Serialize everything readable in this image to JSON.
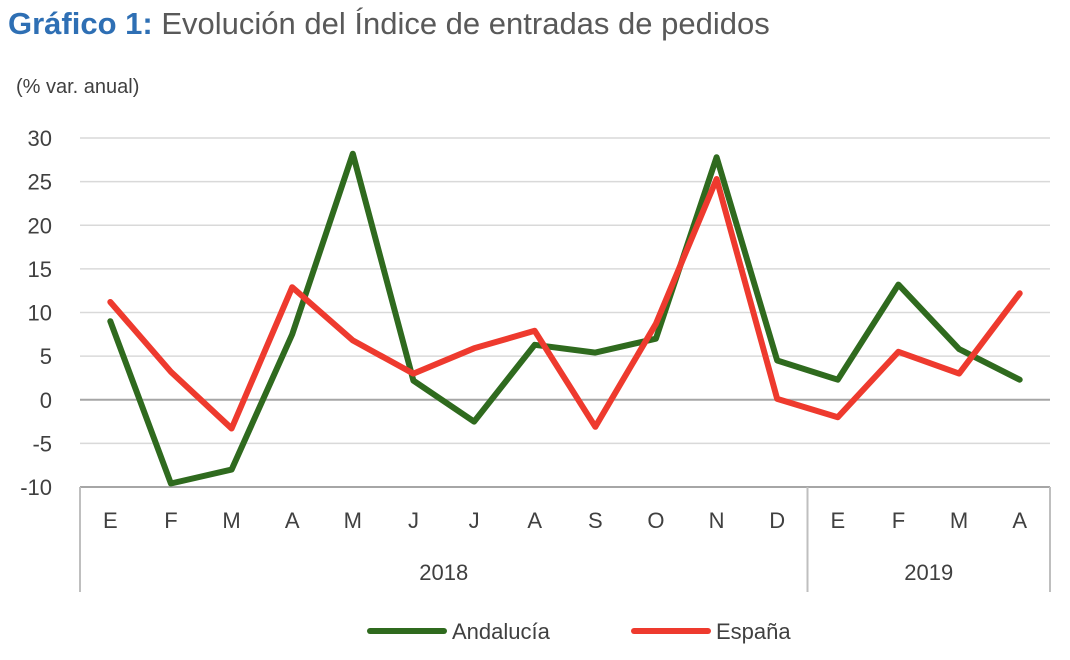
{
  "title": {
    "lead": "Gráfico 1:",
    "rest": "Evolución del Índice de entradas de pedidos"
  },
  "unit_label": "(% var. anual)",
  "colors": {
    "andalucia": "#2f6a1e",
    "espana": "#ee3a2e",
    "title_accent": "#2e6fb4",
    "grid": "#d9d9d9"
  },
  "chart_data": {
    "type": "line",
    "title": "Evolución del Índice de entradas de pedidos",
    "ylabel": "(% var. anual)",
    "ylim": [
      -10,
      30
    ],
    "yticks": [
      30,
      25,
      20,
      15,
      10,
      5,
      0,
      -5,
      -10
    ],
    "grid": true,
    "legend": "bottom",
    "categories": [
      "E",
      "F",
      "M",
      "A",
      "M",
      "J",
      "J",
      "A",
      "S",
      "O",
      "N",
      "D",
      "E",
      "F",
      "M",
      "A"
    ],
    "groups": [
      {
        "label": "2018",
        "count": 12
      },
      {
        "label": "2019",
        "count": 4
      }
    ],
    "series": [
      {
        "name": "Andalucía",
        "color": "#2f6a1e",
        "values": [
          9,
          -9.6,
          -8,
          7.5,
          28.2,
          2.2,
          -2.5,
          6.3,
          5.4,
          7,
          27.8,
          4.5,
          2.3,
          13.2,
          5.8,
          2.3
        ]
      },
      {
        "name": "España",
        "color": "#ee3a2e",
        "values": [
          11.2,
          3.2,
          -3.3,
          12.9,
          6.8,
          3,
          5.9,
          7.9,
          -3.1,
          8.7,
          25.3,
          0.1,
          -2,
          5.5,
          3,
          12.2
        ]
      }
    ]
  }
}
